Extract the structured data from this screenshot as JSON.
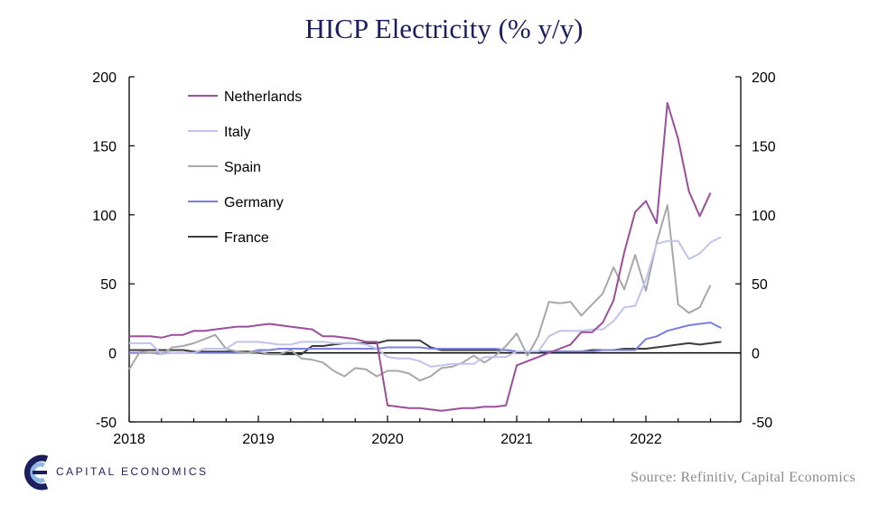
{
  "title": "HICP Electricity (% y/y)",
  "source": "Source: Refinitiv, Capital Economics",
  "brand": "CAPITAL ECONOMICS",
  "colors": {
    "title": "#1b1f5e",
    "axis": "#000000"
  },
  "chart_data": {
    "type": "line",
    "title": "HICP Electricity (% y/y)",
    "x_start": 2018.0,
    "x_step": 0.08333,
    "x_ticks": [
      "2018",
      "2019",
      "2020",
      "2021",
      "2022"
    ],
    "xlim": [
      2018,
      2022.83
    ],
    "ylim": [
      -50,
      200
    ],
    "y_ticks": [
      "-50",
      "0",
      "50",
      "100",
      "150",
      "200"
    ],
    "y_right_ticks": [
      "-50",
      "0",
      "50",
      "100",
      "150",
      "200"
    ],
    "grid": false,
    "legend_position": "top-left",
    "series": [
      {
        "name": "Netherlands",
        "color": "#9b4f9a",
        "values": [
          12,
          12,
          12,
          11,
          13,
          13,
          16,
          16,
          17,
          18,
          19,
          19,
          20,
          21,
          20,
          19,
          18,
          17,
          12,
          12,
          11,
          10,
          8,
          8,
          -38,
          -39,
          -40,
          -40,
          -41,
          -42,
          -41,
          -40,
          -40,
          -39,
          -39,
          -38,
          -9,
          -6,
          -3,
          0,
          3,
          6,
          15,
          15,
          22,
          38,
          73,
          102,
          110,
          94,
          181,
          155,
          117,
          99,
          116
        ]
      },
      {
        "name": "Italy",
        "color": "#c0c3ee",
        "values": [
          7,
          7,
          7,
          -1,
          0,
          0,
          0,
          3,
          3,
          3,
          8,
          8,
          8,
          7,
          6,
          6,
          8,
          8,
          8,
          7,
          7,
          7,
          6,
          3,
          -3,
          -4,
          -4,
          -6,
          -10,
          -9,
          -8,
          -8,
          -8,
          -3,
          -3,
          -3,
          1,
          1,
          1,
          12,
          16,
          16,
          16,
          17,
          17,
          23,
          33,
          34,
          53,
          79,
          81,
          81,
          68,
          72,
          80,
          84
        ]
      },
      {
        "name": "Spain",
        "color": "#a8a8a8",
        "values": [
          -12,
          1,
          0,
          -1,
          4,
          5,
          7,
          10,
          13,
          3,
          1,
          0,
          1,
          -1,
          -1,
          2,
          -4,
          -5,
          -7,
          -13,
          -17,
          -11,
          -12,
          -17,
          -13,
          -13,
          -15,
          -20,
          -17,
          -11,
          -10,
          -7,
          -2,
          -7,
          -2,
          5,
          14,
          -2,
          12,
          37,
          36,
          37,
          27,
          35,
          43,
          62,
          46,
          71,
          45,
          80,
          107,
          35,
          29,
          33,
          49
        ]
      },
      {
        "name": "Germany",
        "color": "#7b80e0",
        "values": [
          0,
          0,
          0,
          0,
          0,
          0,
          0,
          0,
          0,
          0,
          0,
          0,
          2,
          2,
          3,
          3,
          3,
          3,
          3,
          3,
          3,
          3,
          3,
          3,
          4,
          4,
          4,
          4,
          3,
          3,
          3,
          3,
          3,
          3,
          3,
          2,
          1,
          1,
          1,
          1,
          1,
          1,
          1,
          1,
          2,
          2,
          2,
          2,
          10,
          12,
          16,
          18,
          20,
          21,
          22,
          18
        ]
      },
      {
        "name": "France",
        "color": "#3d3d3d",
        "values": [
          2,
          2,
          2,
          2,
          2,
          2,
          1,
          1,
          1,
          1,
          1,
          1,
          0,
          -1,
          -1,
          -1,
          -1,
          5,
          5,
          6,
          7,
          7,
          7,
          7,
          9,
          9,
          9,
          9,
          4,
          2,
          2,
          2,
          2,
          2,
          2,
          2,
          1,
          1,
          1,
          1,
          1,
          1,
          1,
          2,
          2,
          2,
          3,
          3,
          3,
          4,
          5,
          6,
          7,
          6,
          7,
          8
        ]
      }
    ]
  }
}
